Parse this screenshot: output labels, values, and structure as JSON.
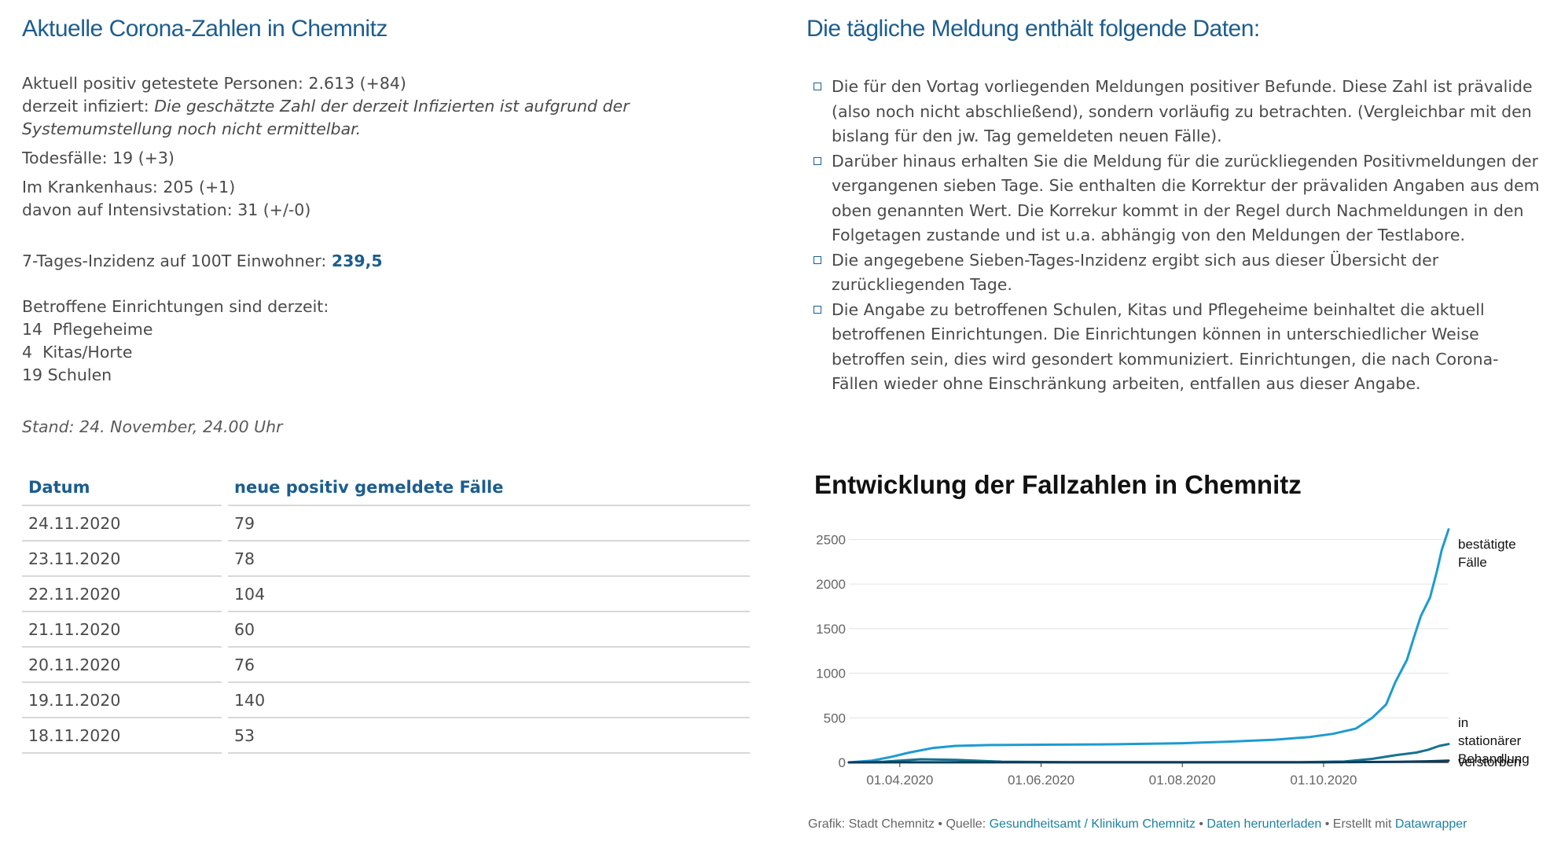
{
  "left": {
    "heading": "Aktuelle Corona-Zahlen in Chemnitz",
    "positiv_label": "Aktuell positiv getestete Personen: ",
    "positiv_value": "2.613 (+84)",
    "infiziert_label": "derzeit infiziert: ",
    "infiziert_note": "Die geschätzte Zahl der derzeit Infizierten ist aufgrund der Systemumstellung noch nicht ermittelbar.",
    "tod": "Todesfälle: 19 (+3)",
    "krankenhaus": "Im Krankenhaus: 205 (+1)",
    "intensiv": "davon auf Intensivstation: 31 (+/-0)",
    "inzidenz_label": "7-Tages-Inzidenz auf 100T Einwohner: ",
    "inzidenz_value": "239,5",
    "einrichtungen_label": "Betroffene Einrichtungen sind derzeit:",
    "einrichtungen": [
      "14  Pflegeheime",
      "4  Kitas/Horte",
      "19 Schulen"
    ],
    "stand": "Stand: 24. November, 24.00 Uhr"
  },
  "table": {
    "headers": [
      "Datum",
      "neue positiv gemeldete Fälle"
    ],
    "rows": [
      [
        "24.11.2020",
        "79"
      ],
      [
        "23.11.2020",
        "78"
      ],
      [
        "22.11.2020",
        "104"
      ],
      [
        "21.11.2020",
        "60"
      ],
      [
        "20.11.2020",
        "76"
      ],
      [
        "19.11.2020",
        "140"
      ],
      [
        "18.11.2020",
        "53"
      ]
    ]
  },
  "right": {
    "heading": "Die tägliche Meldung enthält folgende Daten:",
    "items": [
      "Die für den Vortag vorliegenden Meldungen positiver Befunde. Diese Zahl ist prävalide (also noch nicht abschließend), sondern vorläufig zu betrachten. (Vergleichbar mit den bislang für den jw. Tag gemeldeten neuen Fälle).",
      "Darüber hinaus erhalten Sie die Meldung für die zurückliegenden Positivmeldungen der vergangenen sieben Tage. Sie enthalten die Korrektur der prävaliden Angaben aus dem oben genannten Wert. Die Korrekur kommt in der Regel durch Nachmeldungen in den Folgetagen zustande und ist u.a. abhängig von den Meldungen der Testlabore.",
      "Die angegebene Sieben-Tages-Inzidenz ergibt sich aus dieser Übersicht der zurückliegenden Tage.",
      "Die Angabe zu betroffenen Schulen, Kitas und Pflegeheime beinhaltet die aktuell betroffenen Einrichtungen. Die Einrichtungen können in unterschiedlicher Weise betroffen sein, dies wird gesondert kommuniziert. Einrichtungen, die nach Corona-Fällen wieder ohne Einschränkung arbeiten, entfallen aus dieser Angabe."
    ]
  },
  "chart_data": {
    "type": "line",
    "title": "Entwicklung der Fallzahlen in Chemnitz",
    "xlabel": "",
    "ylabel": "",
    "ylim": [
      0,
      2600
    ],
    "xlim": [
      "2020-03-10",
      "2020-11-24"
    ],
    "yticks": [
      0,
      500,
      1000,
      1500,
      2000,
      2500
    ],
    "xticks": [
      "2020-04-01",
      "2020-06-01",
      "2020-08-01",
      "2020-10-01"
    ],
    "xtick_labels": [
      "01.04.2020",
      "01.06.2020",
      "01.08.2020",
      "01.10.2020"
    ],
    "grid": "horizontal",
    "legend": "direct labels at line ends",
    "series": [
      {
        "name": "bestätigte Fälle",
        "color": "#1d9bd1",
        "points": [
          [
            "2020-03-10",
            0
          ],
          [
            "2020-03-20",
            20
          ],
          [
            "2020-03-28",
            60
          ],
          [
            "2020-04-05",
            110
          ],
          [
            "2020-04-15",
            160
          ],
          [
            "2020-04-25",
            185
          ],
          [
            "2020-05-10",
            195
          ],
          [
            "2020-06-01",
            198
          ],
          [
            "2020-07-01",
            203
          ],
          [
            "2020-08-01",
            215
          ],
          [
            "2020-08-20",
            232
          ],
          [
            "2020-09-10",
            255
          ],
          [
            "2020-09-25",
            285
          ],
          [
            "2020-10-05",
            320
          ],
          [
            "2020-10-15",
            380
          ],
          [
            "2020-10-22",
            500
          ],
          [
            "2020-10-28",
            650
          ],
          [
            "2020-11-01",
            900
          ],
          [
            "2020-11-06",
            1150
          ],
          [
            "2020-11-09",
            1400
          ],
          [
            "2020-11-12",
            1640
          ],
          [
            "2020-11-16",
            1850
          ],
          [
            "2020-11-19",
            2150
          ],
          [
            "2020-11-21",
            2380
          ],
          [
            "2020-11-24",
            2613
          ]
        ]
      },
      {
        "name": "in stationärer Behandlung",
        "color": "#16738f",
        "points": [
          [
            "2020-03-10",
            0
          ],
          [
            "2020-03-25",
            8
          ],
          [
            "2020-04-10",
            35
          ],
          [
            "2020-04-25",
            28
          ],
          [
            "2020-05-15",
            8
          ],
          [
            "2020-06-15",
            3
          ],
          [
            "2020-08-15",
            2
          ],
          [
            "2020-09-20",
            3
          ],
          [
            "2020-10-10",
            10
          ],
          [
            "2020-10-22",
            40
          ],
          [
            "2020-11-01",
            80
          ],
          [
            "2020-11-10",
            110
          ],
          [
            "2020-11-15",
            140
          ],
          [
            "2020-11-20",
            185
          ],
          [
            "2020-11-24",
            205
          ]
        ]
      },
      {
        "name": "verstorben",
        "color": "#0c3c5c",
        "points": [
          [
            "2020-03-10",
            0
          ],
          [
            "2020-04-10",
            1
          ],
          [
            "2020-06-01",
            1
          ],
          [
            "2020-10-01",
            1
          ],
          [
            "2020-11-01",
            6
          ],
          [
            "2020-11-15",
            12
          ],
          [
            "2020-11-24",
            19
          ]
        ]
      }
    ],
    "labels": {
      "bestätigte Fälle": [
        "bestätigte",
        "Fälle"
      ],
      "in stationärer Behandlung": [
        "in",
        "stationärer",
        "Behandlung"
      ],
      "verstorben": [
        "verstorben"
      ]
    }
  },
  "footer": {
    "prefix": "Grafik: Stadt Chemnitz • Quelle: ",
    "source_link": "Gesundheitsamt / Klinikum Chemnitz",
    "sep1": " • ",
    "download_link": "Daten herunterladen",
    "sep2": " • Erstellt mit ",
    "tool_link": "Datawrapper"
  }
}
